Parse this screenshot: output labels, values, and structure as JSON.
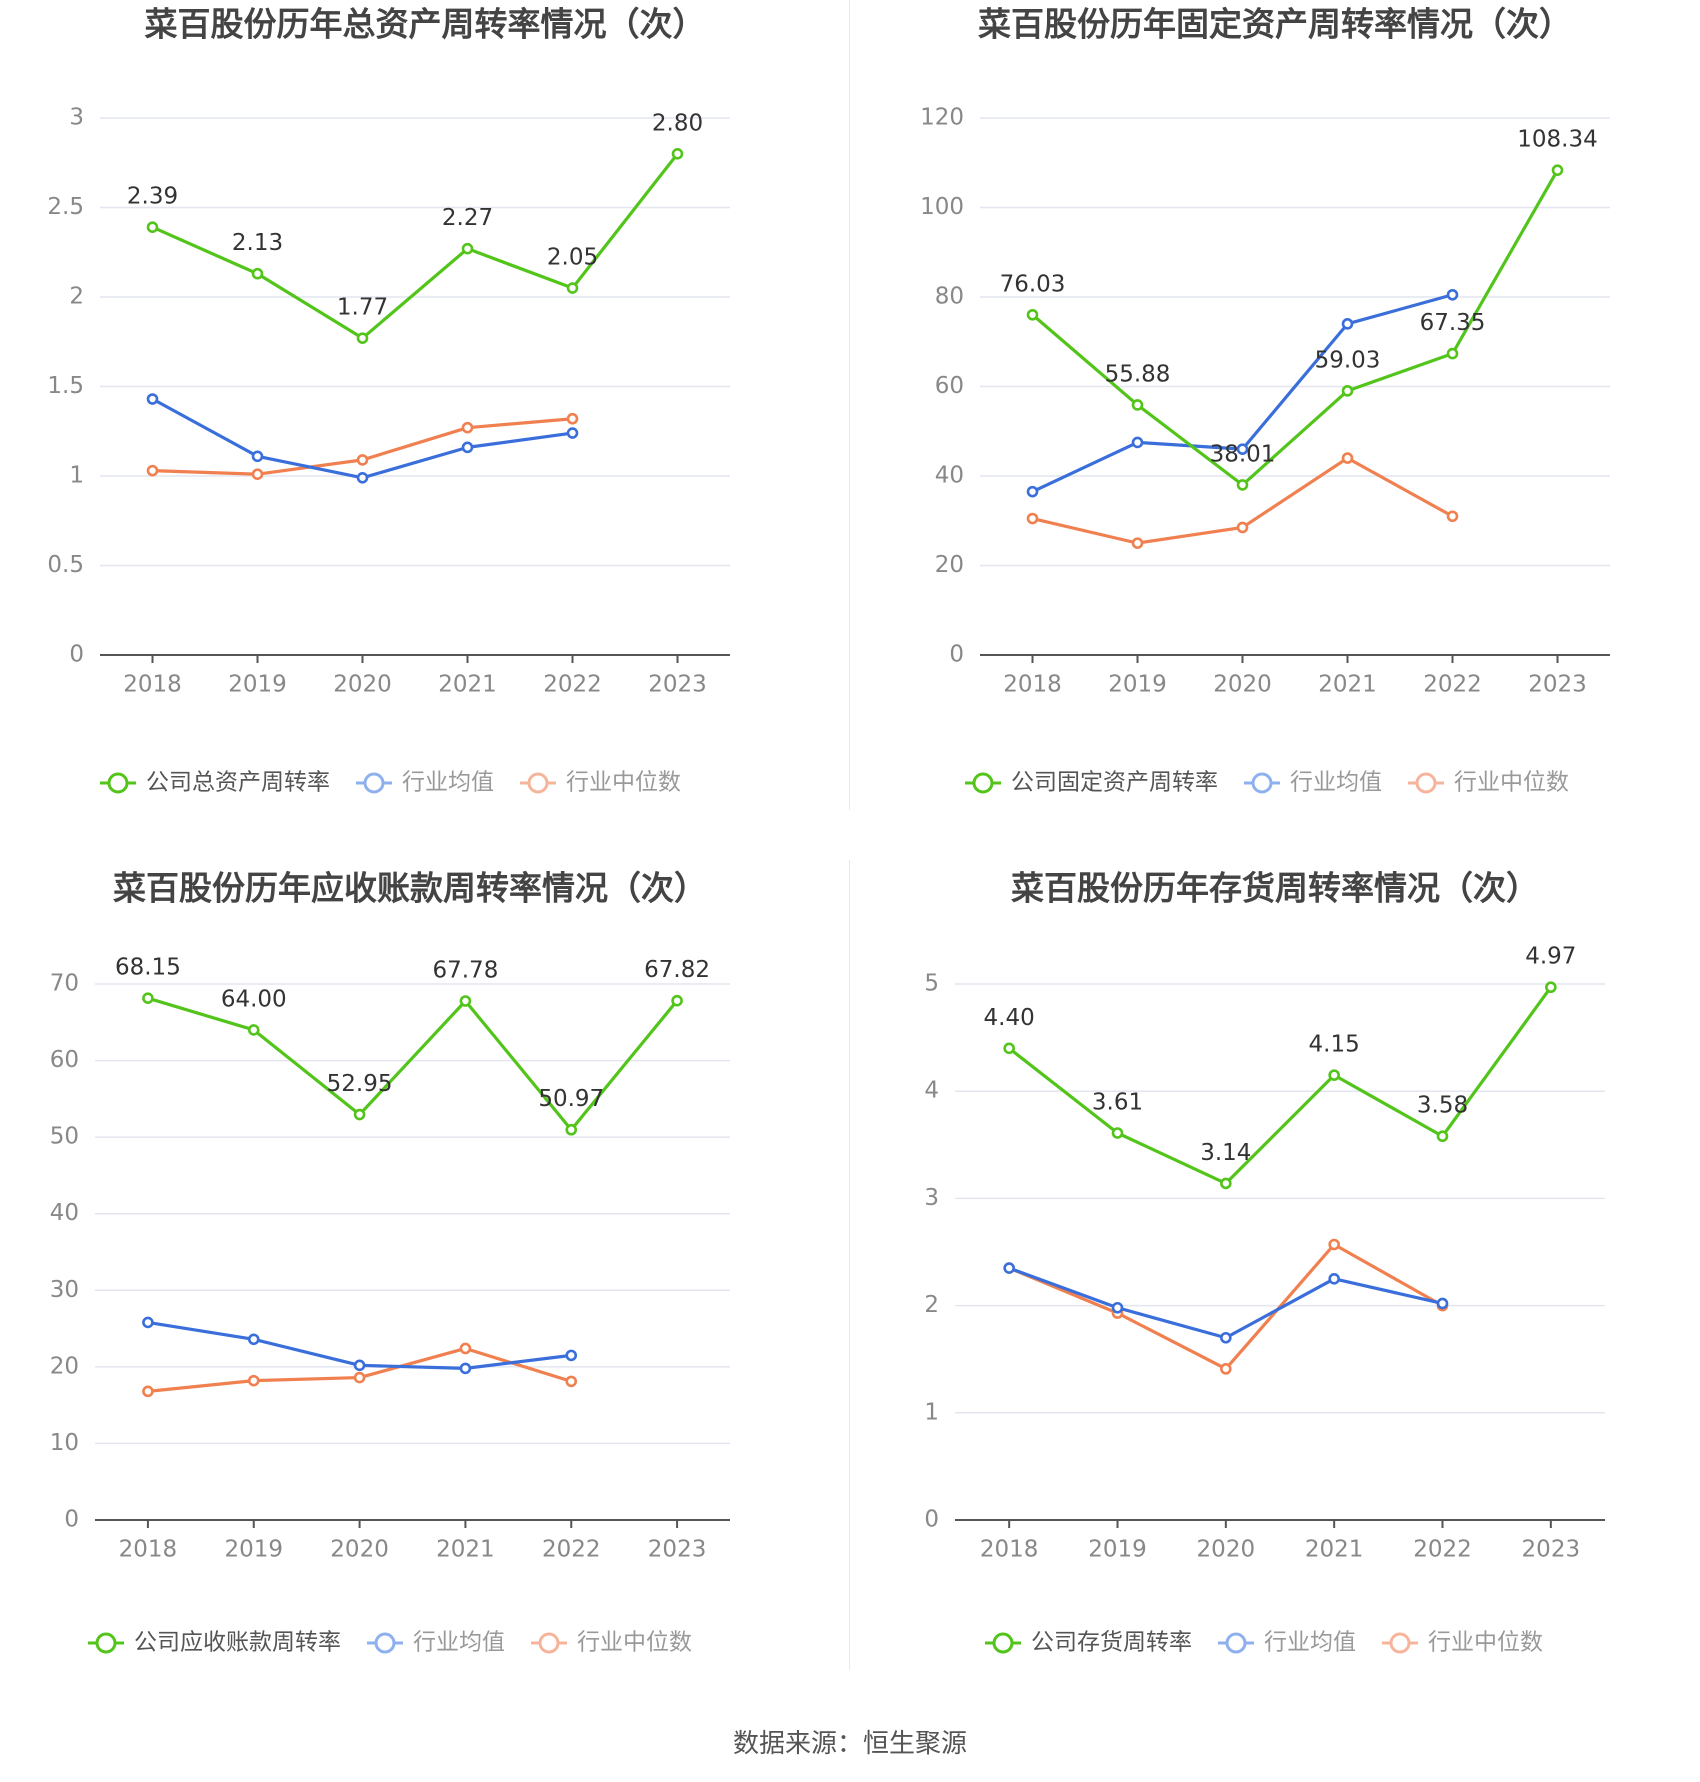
{
  "colors": {
    "company": "#52c41a",
    "industry_avg": "#3a6fdb",
    "industry_median": "#f08050",
    "grid": "#e3e6f0",
    "axis": "#555555",
    "tick_text": "#888888",
    "title": "#444444",
    "legend_text": "#555555",
    "legend_text_muted": "#999999"
  },
  "source_label": "数据来源：恒生聚源",
  "chart_data": [
    {
      "type": "line",
      "title": "菜百股份历年总资产周转率情况（次）",
      "categories": [
        "2018",
        "2019",
        "2020",
        "2021",
        "2022",
        "2023"
      ],
      "ylim": [
        0,
        3
      ],
      "yticks": [
        0,
        0.5,
        1,
        1.5,
        2,
        2.5,
        3
      ],
      "ytick_labels": [
        "0",
        "0.5",
        "1",
        "1.5",
        "2",
        "2.5",
        "3"
      ],
      "grid": true,
      "legend_position": "bottom",
      "series": [
        {
          "name": "公司总资产周转率",
          "color": "#52c41a",
          "labeled": true,
          "values": [
            2.39,
            2.13,
            1.77,
            2.27,
            2.05,
            2.8
          ],
          "labels": [
            "2.39",
            "2.13",
            "1.77",
            "2.27",
            "2.05",
            "2.80"
          ]
        },
        {
          "name": "行业均值",
          "color": "#3a6fdb",
          "labeled": false,
          "values": [
            1.43,
            1.11,
            0.99,
            1.16,
            1.24,
            null
          ]
        },
        {
          "name": "行业中位数",
          "color": "#f08050",
          "labeled": false,
          "values": [
            1.03,
            1.01,
            1.09,
            1.27,
            1.32,
            null
          ]
        }
      ]
    },
    {
      "type": "line",
      "title": "菜百股份历年固定资产周转率情况（次）",
      "categories": [
        "2018",
        "2019",
        "2020",
        "2021",
        "2022",
        "2023"
      ],
      "ylim": [
        0,
        120
      ],
      "yticks": [
        0,
        20,
        40,
        60,
        80,
        100,
        120
      ],
      "ytick_labels": [
        "0",
        "20",
        "40",
        "60",
        "80",
        "100",
        "120"
      ],
      "grid": true,
      "legend_position": "bottom",
      "series": [
        {
          "name": "公司固定资产周转率",
          "color": "#52c41a",
          "labeled": true,
          "values": [
            76.03,
            55.88,
            38.01,
            59.03,
            67.35,
            108.34
          ],
          "labels": [
            "76.03",
            "55.88",
            "38.01",
            "59.03",
            "67.35",
            "108.34"
          ]
        },
        {
          "name": "行业均值",
          "color": "#3a6fdb",
          "labeled": false,
          "values": [
            36.5,
            47.5,
            46.0,
            74.0,
            80.5,
            null
          ]
        },
        {
          "name": "行业中位数",
          "color": "#f08050",
          "labeled": false,
          "values": [
            30.5,
            25.0,
            28.5,
            44.0,
            31.0,
            null
          ]
        }
      ]
    },
    {
      "type": "line",
      "title": "菜百股份历年应收账款周转率情况（次）",
      "categories": [
        "2018",
        "2019",
        "2020",
        "2021",
        "2022",
        "2023"
      ],
      "ylim": [
        0,
        70
      ],
      "yticks": [
        0,
        10,
        20,
        30,
        40,
        50,
        60,
        70
      ],
      "ytick_labels": [
        "0",
        "10",
        "20",
        "30",
        "40",
        "50",
        "60",
        "70"
      ],
      "grid": true,
      "legend_position": "bottom",
      "series": [
        {
          "name": "公司应收账款周转率",
          "color": "#52c41a",
          "labeled": true,
          "values": [
            68.15,
            64.0,
            52.95,
            67.78,
            50.97,
            67.82
          ],
          "labels": [
            "68.15",
            "64.00",
            "52.95",
            "67.78",
            "50.97",
            "67.82"
          ]
        },
        {
          "name": "行业均值",
          "color": "#3a6fdb",
          "labeled": false,
          "values": [
            25.8,
            23.6,
            20.2,
            19.8,
            21.5,
            null
          ]
        },
        {
          "name": "行业中位数",
          "color": "#f08050",
          "labeled": false,
          "values": [
            16.8,
            18.2,
            18.6,
            22.4,
            18.1,
            null
          ]
        }
      ]
    },
    {
      "type": "line",
      "title": "菜百股份历年存货周转率情况（次）",
      "categories": [
        "2018",
        "2019",
        "2020",
        "2021",
        "2022",
        "2023"
      ],
      "ylim": [
        0,
        5
      ],
      "yticks": [
        0,
        1,
        2,
        3,
        4,
        5
      ],
      "ytick_labels": [
        "0",
        "1",
        "2",
        "3",
        "4",
        "5"
      ],
      "grid": true,
      "legend_position": "bottom",
      "series": [
        {
          "name": "公司存货周转率",
          "color": "#52c41a",
          "labeled": true,
          "values": [
            4.4,
            3.61,
            3.14,
            4.15,
            3.58,
            4.97
          ],
          "labels": [
            "4.40",
            "3.61",
            "3.14",
            "4.15",
            "3.58",
            "4.97"
          ]
        },
        {
          "name": "行业均值",
          "color": "#3a6fdb",
          "labeled": false,
          "values": [
            2.35,
            1.98,
            1.7,
            2.25,
            2.02,
            null
          ]
        },
        {
          "name": "行业中位数",
          "color": "#f08050",
          "labeled": false,
          "values": [
            2.35,
            1.93,
            1.41,
            2.57,
            2.0,
            null
          ]
        }
      ]
    }
  ]
}
